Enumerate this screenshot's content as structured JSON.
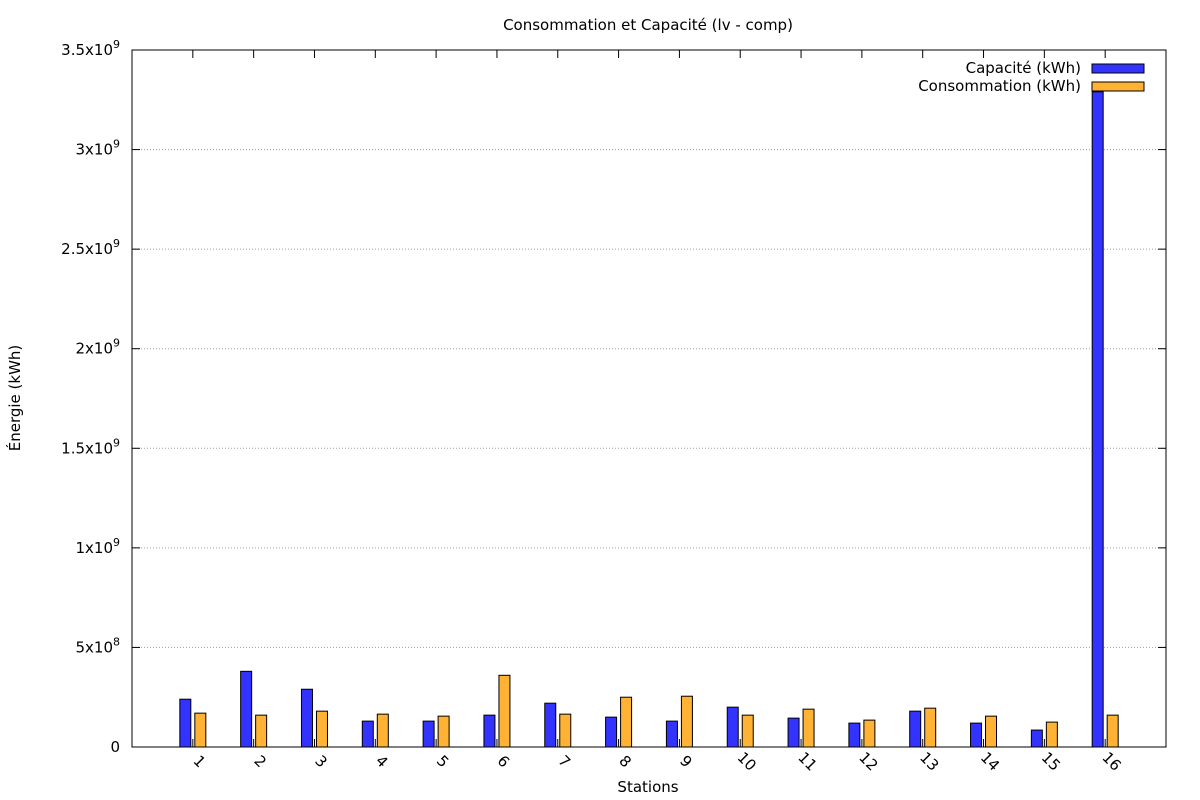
{
  "chart_data": {
    "type": "bar",
    "title": "Consommation et Capacité (lv - comp)",
    "xlabel": "Stations",
    "ylabel": "Énergie (kWh)",
    "ylim": [
      0,
      3500000000
    ],
    "y_ticks": [
      {
        "value": 0,
        "mantissa": "0",
        "exp": ""
      },
      {
        "value": 500000000,
        "mantissa": "5x10",
        "exp": "8"
      },
      {
        "value": 1000000000,
        "mantissa": "1x10",
        "exp": "9"
      },
      {
        "value": 1500000000,
        "mantissa": "1.5x10",
        "exp": "9"
      },
      {
        "value": 2000000000,
        "mantissa": "2x10",
        "exp": "9"
      },
      {
        "value": 2500000000,
        "mantissa": "2.5x10",
        "exp": "9"
      },
      {
        "value": 3000000000,
        "mantissa": "3x10",
        "exp": "9"
      },
      {
        "value": 3500000000,
        "mantissa": "3.5x10",
        "exp": "9"
      }
    ],
    "categories": [
      "1",
      "2",
      "3",
      "4",
      "5",
      "6",
      "7",
      "8",
      "9",
      "10",
      "11",
      "12",
      "13",
      "14",
      "15",
      "16"
    ],
    "series": [
      {
        "name": "Capacité (kWh)",
        "color": "#3333ff",
        "values": [
          240000000,
          380000000,
          290000000,
          130000000,
          130000000,
          160000000,
          220000000,
          150000000,
          130000000,
          200000000,
          145000000,
          120000000,
          180000000,
          120000000,
          85000000,
          3290000000
        ]
      },
      {
        "name": "Consommation (kWh)",
        "color": "#ffb233",
        "values": [
          170000000,
          160000000,
          180000000,
          165000000,
          155000000,
          360000000,
          165000000,
          250000000,
          255000000,
          160000000,
          190000000,
          135000000,
          195000000,
          155000000,
          125000000,
          160000000
        ]
      }
    ],
    "grid": "y-dotted",
    "legend_position": "top-right"
  }
}
